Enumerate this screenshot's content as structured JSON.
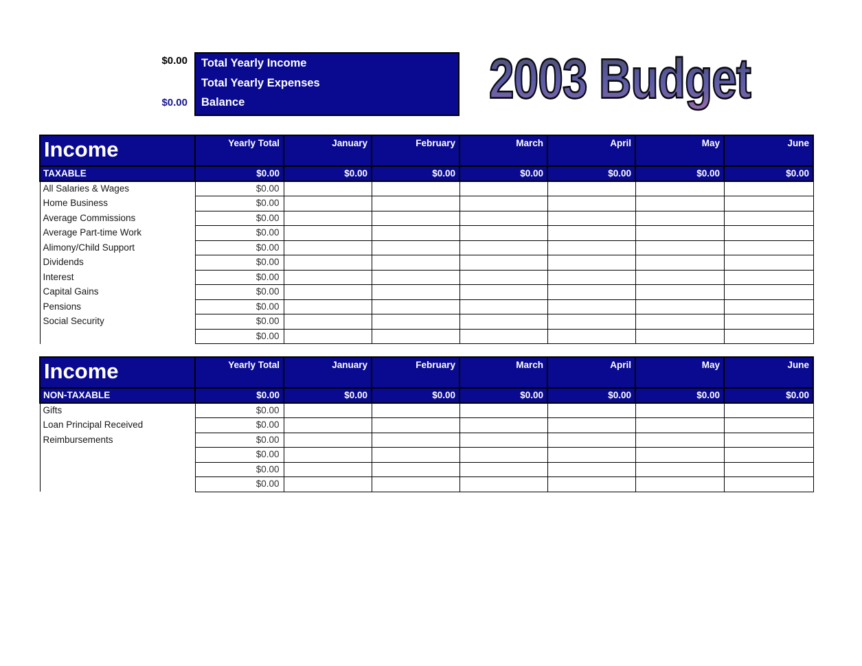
{
  "title": "2003 Budget",
  "colors": {
    "navy": "#0a0a90",
    "grid": "#000000",
    "income_value_text": "#000000",
    "balance_value_text": "#14148e",
    "title_gradient": [
      "#0a0a1c",
      "#121294",
      "#2323c8",
      "#9a42d2"
    ]
  },
  "summary": {
    "rows": [
      {
        "label": "Total Yearly Income",
        "value": "$0.00"
      },
      {
        "label": "Total Yearly Expenses",
        "value": ""
      },
      {
        "label": "Balance",
        "value": "$0.00"
      }
    ]
  },
  "columns": [
    "Yearly Total",
    "January",
    "February",
    "March",
    "April",
    "May",
    "June"
  ],
  "tables": [
    {
      "title": "Income",
      "category": "TAXABLE",
      "category_values": [
        "$0.00",
        "$0.00",
        "$0.00",
        "$0.00",
        "$0.00",
        "$0.00",
        "$0.00"
      ],
      "rows": [
        {
          "label": "All Salaries & Wages",
          "yearly_total": "$0.00"
        },
        {
          "label": "Home Business",
          "yearly_total": "$0.00"
        },
        {
          "label": "Average Commissions",
          "yearly_total": "$0.00"
        },
        {
          "label": "Average Part-time Work",
          "yearly_total": "$0.00"
        },
        {
          "label": "Alimony/Child Support",
          "yearly_total": "$0.00"
        },
        {
          "label": "Dividends",
          "yearly_total": "$0.00"
        },
        {
          "label": "Interest",
          "yearly_total": "$0.00"
        },
        {
          "label": "Capital Gains",
          "yearly_total": "$0.00"
        },
        {
          "label": "Pensions",
          "yearly_total": "$0.00"
        },
        {
          "label": "Social Security",
          "yearly_total": "$0.00"
        },
        {
          "label": "",
          "yearly_total": "$0.00"
        }
      ]
    },
    {
      "title": "Income",
      "category": "NON-TAXABLE",
      "category_values": [
        "$0.00",
        "$0.00",
        "$0.00",
        "$0.00",
        "$0.00",
        "$0.00",
        "$0.00"
      ],
      "rows": [
        {
          "label": "Gifts",
          "yearly_total": "$0.00"
        },
        {
          "label": "Loan Principal Received",
          "yearly_total": "$0.00"
        },
        {
          "label": "Reimbursements",
          "yearly_total": "$0.00"
        },
        {
          "label": "",
          "yearly_total": "$0.00"
        },
        {
          "label": "",
          "yearly_total": "$0.00"
        },
        {
          "label": "",
          "yearly_total": "$0.00"
        }
      ]
    }
  ]
}
